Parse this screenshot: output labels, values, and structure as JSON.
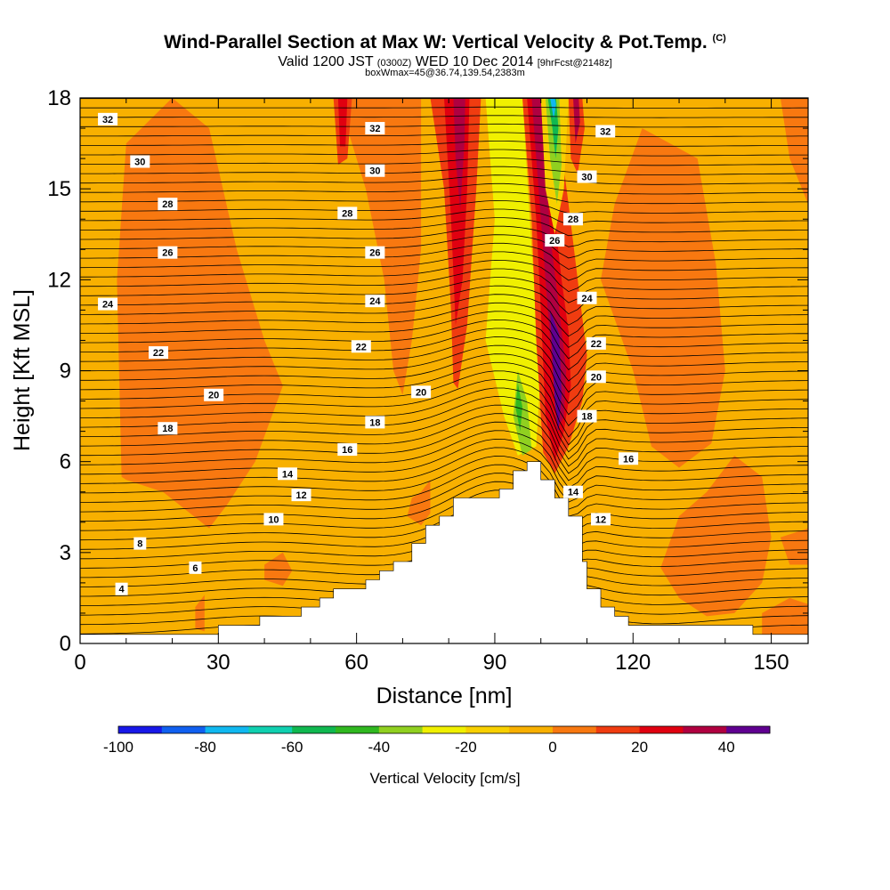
{
  "title": {
    "main": "Wind-Parallel Section at Max W: Vertical Velocity & Pot.Temp.",
    "mark": "(C)",
    "sub_valid": "Valid 1200 JST",
    "sub_z": "(0300Z)",
    "sub_date": "WED 10 Dec 2014",
    "sub_fcst": "[9hrFcst@2148z]",
    "box": "boxWmax=45@36.74,139.54,2383m"
  },
  "chart_data": {
    "type": "heatmap",
    "title": "Wind-Parallel Section at Max W: Vertical Velocity & Pot.Temp.",
    "xlabel": "Distance [nm]",
    "ylabel": "Height [Kft MSL]",
    "xlim": [
      0,
      158
    ],
    "ylim": [
      0,
      18
    ],
    "x_ticks": [
      0,
      30,
      60,
      90,
      120,
      150
    ],
    "y_ticks": [
      0,
      3,
      6,
      9,
      12,
      15,
      18
    ],
    "grid": false,
    "colorbar": {
      "title": "Vertical Velocity [cm/s]",
      "range": [
        -100,
        50
      ],
      "tick_values": [
        -100,
        -80,
        -60,
        -40,
        -20,
        0,
        20,
        40
      ],
      "colors": [
        "#1818e8",
        "#1060f0",
        "#10b8f0",
        "#10d0b0",
        "#10b850",
        "#30b820",
        "#90d020",
        "#f0f000",
        "#f8d000",
        "#f8b000",
        "#f87810",
        "#f03c10",
        "#e00010",
        "#b00040",
        "#600090"
      ]
    },
    "terrain": [
      [
        0,
        0.3
      ],
      [
        30,
        0.3
      ],
      [
        30,
        0.6
      ],
      [
        39,
        0.6
      ],
      [
        39,
        0.9
      ],
      [
        48,
        0.9
      ],
      [
        48,
        1.2
      ],
      [
        52,
        1.2
      ],
      [
        52,
        1.5
      ],
      [
        55,
        1.5
      ],
      [
        55,
        1.8
      ],
      [
        62,
        1.8
      ],
      [
        62,
        2.1
      ],
      [
        65,
        2.1
      ],
      [
        65,
        2.4
      ],
      [
        68,
        2.4
      ],
      [
        68,
        2.7
      ],
      [
        72,
        2.7
      ],
      [
        72,
        3.3
      ],
      [
        75,
        3.3
      ],
      [
        75,
        3.9
      ],
      [
        78,
        3.9
      ],
      [
        78,
        4.2
      ],
      [
        81,
        4.2
      ],
      [
        81,
        4.8
      ],
      [
        91,
        4.8
      ],
      [
        91,
        5.1
      ],
      [
        94,
        5.1
      ],
      [
        94,
        5.7
      ],
      [
        97,
        5.7
      ],
      [
        97,
        6
      ],
      [
        100,
        6
      ],
      [
        100,
        5.4
      ],
      [
        103,
        5.4
      ],
      [
        103,
        4.8
      ],
      [
        106,
        4.8
      ],
      [
        106,
        4.2
      ],
      [
        109,
        4.2
      ],
      [
        109,
        2.7
      ],
      [
        110,
        2.7
      ],
      [
        110,
        1.8
      ],
      [
        113,
        1.8
      ],
      [
        113,
        1.2
      ],
      [
        116,
        1.2
      ],
      [
        116,
        0.9
      ],
      [
        119,
        0.9
      ],
      [
        119,
        0.6
      ],
      [
        146,
        0.6
      ],
      [
        146,
        0.3
      ],
      [
        158,
        0.3
      ]
    ],
    "theta_labels": [
      {
        "text": "32",
        "x": 6,
        "y": 17.3
      },
      {
        "text": "30",
        "x": 13,
        "y": 15.9
      },
      {
        "text": "28",
        "x": 19,
        "y": 14.5
      },
      {
        "text": "26",
        "x": 19,
        "y": 12.9
      },
      {
        "text": "24",
        "x": 6,
        "y": 11.2
      },
      {
        "text": "22",
        "x": 17,
        "y": 9.6
      },
      {
        "text": "20",
        "x": 29,
        "y": 8.2
      },
      {
        "text": "18",
        "x": 19,
        "y": 7.1
      },
      {
        "text": "16",
        "x": 58,
        "y": 6.4
      },
      {
        "text": "14",
        "x": 45,
        "y": 5.6
      },
      {
        "text": "12",
        "x": 48,
        "y": 4.9
      },
      {
        "text": "10",
        "x": 42,
        "y": 4.1
      },
      {
        "text": "8",
        "x": 13,
        "y": 3.3
      },
      {
        "text": "6",
        "x": 25,
        "y": 2.5
      },
      {
        "text": "4",
        "x": 9,
        "y": 1.8
      },
      {
        "text": "32",
        "x": 64,
        "y": 17
      },
      {
        "text": "30",
        "x": 64,
        "y": 15.6
      },
      {
        "text": "28",
        "x": 58,
        "y": 14.2
      },
      {
        "text": "26",
        "x": 64,
        "y": 12.9
      },
      {
        "text": "24",
        "x": 64,
        "y": 11.3
      },
      {
        "text": "22",
        "x": 61,
        "y": 9.8
      },
      {
        "text": "20",
        "x": 74,
        "y": 8.3
      },
      {
        "text": "18",
        "x": 64,
        "y": 7.3
      },
      {
        "text": "32",
        "x": 114,
        "y": 16.9
      },
      {
        "text": "30",
        "x": 110,
        "y": 15.4
      },
      {
        "text": "28",
        "x": 107,
        "y": 14
      },
      {
        "text": "26",
        "x": 103,
        "y": 13.3
      },
      {
        "text": "24",
        "x": 110,
        "y": 11.4
      },
      {
        "text": "22",
        "x": 112,
        "y": 9.9
      },
      {
        "text": "20",
        "x": 112,
        "y": 8.8
      },
      {
        "text": "18",
        "x": 110,
        "y": 7.5
      },
      {
        "text": "16",
        "x": 119,
        "y": 6.1
      },
      {
        "text": "14",
        "x": 107,
        "y": 5
      },
      {
        "text": "12",
        "x": 113,
        "y": 4.1
      }
    ]
  }
}
